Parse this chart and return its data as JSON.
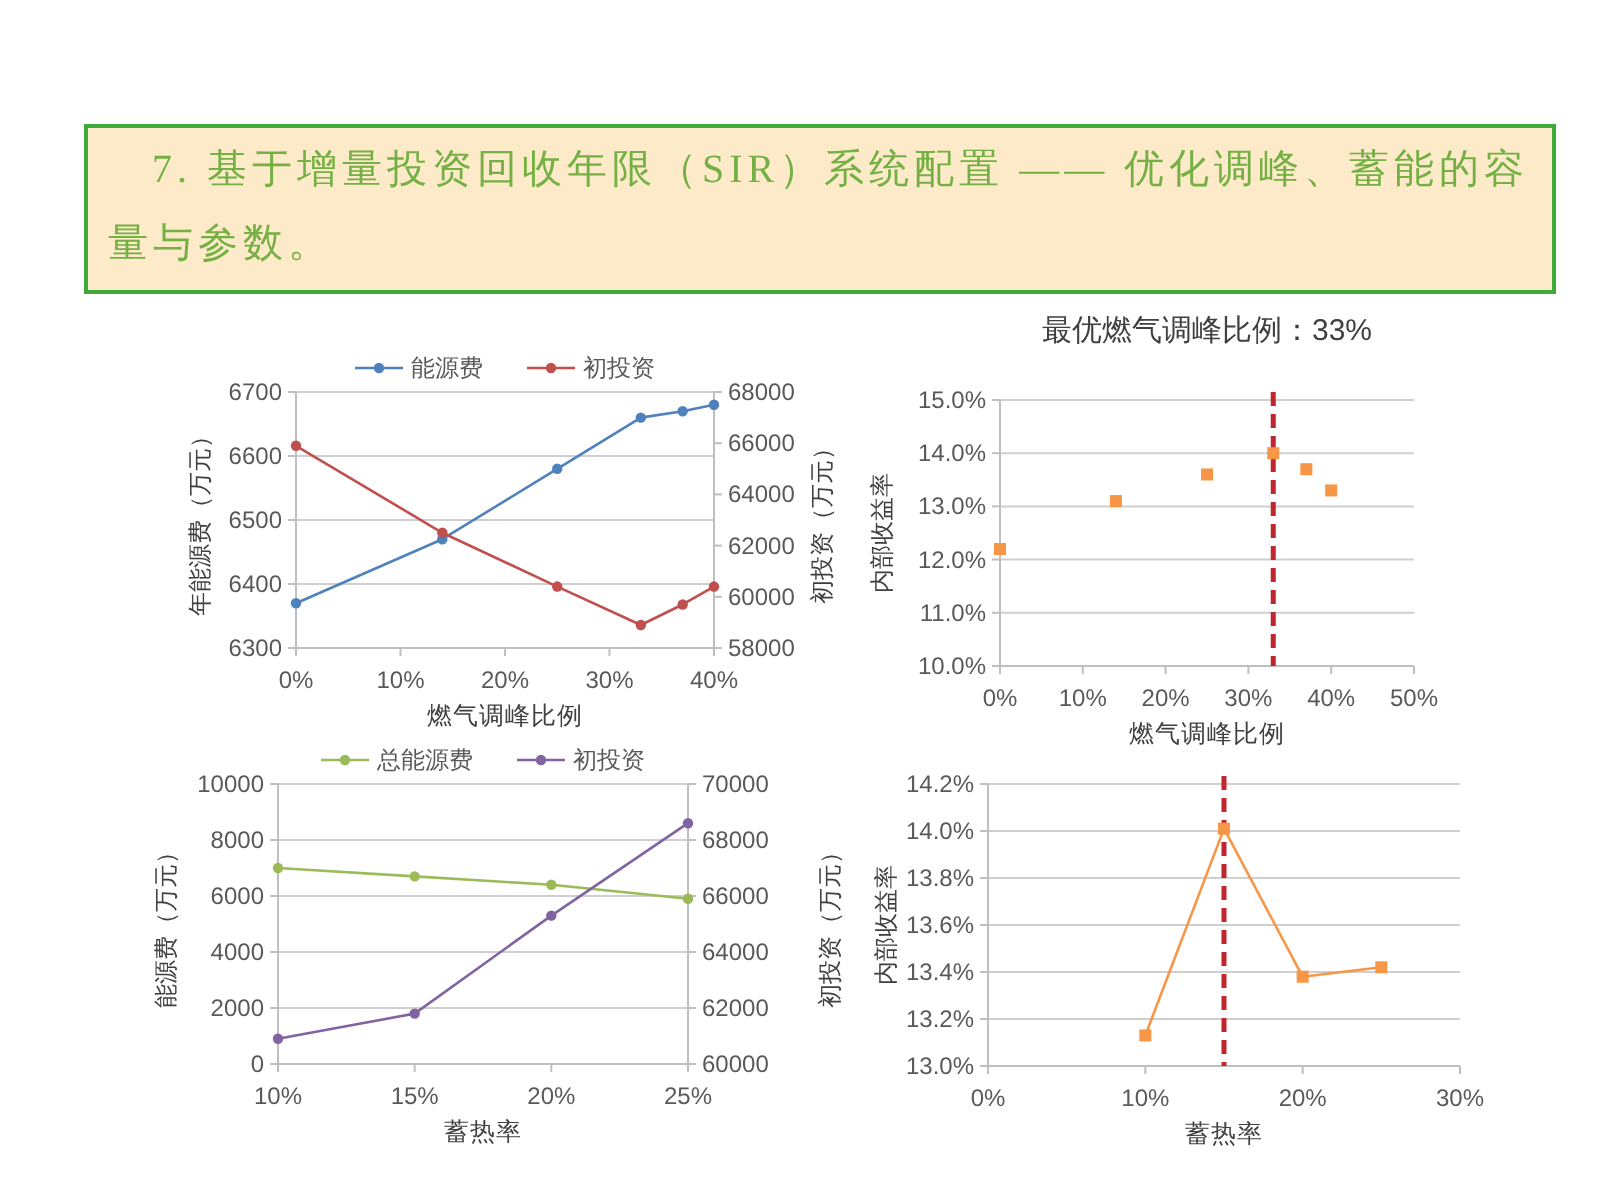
{
  "chart_data": [
    {
      "type": "other",
      "title": "7. 基于增量投资回收年限（SIR）系统配置 —— 优化调峰、蓄能的容量与参数。"
    },
    {
      "type": "line",
      "x": [
        0,
        14,
        25,
        33,
        37,
        40
      ],
      "series": [
        {
          "name": "能源费",
          "color": "#4f81bd",
          "values": [
            6370,
            6470,
            6580,
            6660,
            6670,
            6680
          ]
        },
        {
          "name": "初投资",
          "color": "#c0504d",
          "axis": "y2",
          "values": [
            65900,
            62500,
            60400,
            58900,
            59700,
            60400
          ]
        }
      ],
      "xlim": [
        0,
        40
      ],
      "xticks": [
        {
          "value": 0,
          "label": "0%"
        },
        {
          "value": 10,
          "label": "10%"
        },
        {
          "value": 20,
          "label": "20%"
        },
        {
          "value": 30,
          "label": "30%"
        },
        {
          "value": 40,
          "label": "40%"
        }
      ],
      "ylim": [
        6300,
        6700
      ],
      "yticks": [
        6300,
        6400,
        6500,
        6600,
        6700
      ],
      "y2lim": [
        58000,
        68000
      ],
      "y2ticks": [
        58000,
        60000,
        62000,
        64000,
        66000,
        68000
      ],
      "xlabel": "燃气调峰比例",
      "ylabel": "年能源费（万元）",
      "y2label": "初投资（万元）",
      "legend": "top",
      "grid": "y",
      "marker": "circle"
    },
    {
      "type": "scatter",
      "title": "最优燃气调峰比例：33%",
      "x": [
        0,
        14,
        25,
        33,
        37,
        40
      ],
      "values": [
        12.2,
        13.1,
        13.6,
        14.0,
        13.7,
        13.3
      ],
      "color": "#f79646",
      "marker": "square",
      "xlim": [
        0,
        50
      ],
      "xticks": [
        {
          "value": 0,
          "label": "0%"
        },
        {
          "value": 10,
          "label": "10%"
        },
        {
          "value": 20,
          "label": "20%"
        },
        {
          "value": 30,
          "label": "30%"
        },
        {
          "value": 40,
          "label": "40%"
        },
        {
          "value": 50,
          "label": "50%"
        }
      ],
      "ylim": [
        10,
        15
      ],
      "yticks": [
        {
          "value": 10,
          "label": "10.0%"
        },
        {
          "value": 11,
          "label": "11.0%"
        },
        {
          "value": 12,
          "label": "12.0%"
        },
        {
          "value": 13,
          "label": "13.0%"
        },
        {
          "value": 14,
          "label": "14.0%"
        },
        {
          "value": 15,
          "label": "15.0%"
        }
      ],
      "xlabel": "燃气调峰比例",
      "ylabel": "内部收益率",
      "ref_lines": [
        {
          "axis": "x",
          "value": 33,
          "color": "#c0262d",
          "line_style": "dashed"
        }
      ],
      "grid": "y"
    },
    {
      "type": "line",
      "categories": [
        "10%",
        "15%",
        "20%",
        "25%"
      ],
      "series": [
        {
          "name": "总能源费",
          "color": "#9bbb59",
          "values": [
            7000,
            6700,
            6400,
            5900
          ]
        },
        {
          "name": "初投资",
          "color": "#8064a2",
          "axis": "y2",
          "values": [
            60900,
            61800,
            65300,
            68600
          ]
        }
      ],
      "ylim": [
        0,
        10000
      ],
      "yticks": [
        0,
        2000,
        4000,
        6000,
        8000,
        10000
      ],
      "y2lim": [
        60000,
        70000
      ],
      "y2ticks": [
        60000,
        62000,
        64000,
        66000,
        68000,
        70000
      ],
      "xlabel": "蓄热率",
      "ylabel": "能源费（万元）",
      "y2label": "初投资（万元）",
      "legend": "top",
      "grid": "y",
      "marker": "circle"
    },
    {
      "type": "line",
      "x": [
        10,
        15,
        20,
        25
      ],
      "values": [
        13.13,
        14.01,
        13.38,
        13.42
      ],
      "color": "#f79646",
      "marker": "square",
      "xlim": [
        0,
        30
      ],
      "xticks": [
        {
          "value": 0,
          "label": "0%"
        },
        {
          "value": 10,
          "label": "10%"
        },
        {
          "value": 20,
          "label": "20%"
        },
        {
          "value": 30,
          "label": "30%"
        }
      ],
      "ylim": [
        13,
        14.2
      ],
      "yticks": [
        {
          "value": 13,
          "label": "13.0%"
        },
        {
          "value": 13.2,
          "label": "13.2%"
        },
        {
          "value": 13.4,
          "label": "13.4%"
        },
        {
          "value": 13.6,
          "label": "13.6%"
        },
        {
          "value": 13.8,
          "label": "13.8%"
        },
        {
          "value": 14,
          "label": "14.0%"
        },
        {
          "value": 14.2,
          "label": "14.2%"
        }
      ],
      "xlabel": "蓄热率",
      "ylabel": "内部收益率",
      "ref_lines": [
        {
          "axis": "x",
          "value": 15,
          "color": "#c0262d",
          "line_style": "dashed"
        }
      ],
      "grid": "y"
    }
  ]
}
